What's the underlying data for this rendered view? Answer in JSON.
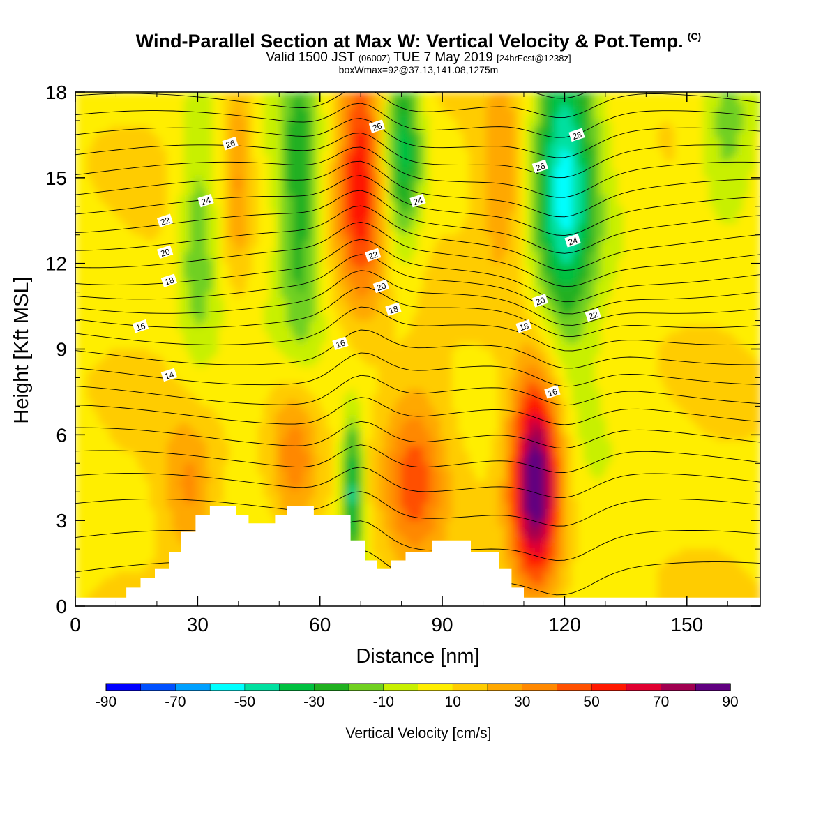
{
  "title": {
    "main": "Wind-Parallel Section at Max W: Vertical Velocity & Pot.Temp.",
    "copyright": "(C)",
    "valid_prefix": "Valid 1500 JST",
    "valid_utc": "(0600Z)",
    "valid_date": "TUE 7 May 2019",
    "forecast": "[24hrFcst@1238z]",
    "box": "boxWmax=92@37.13,141.08,1275m"
  },
  "chart_data": {
    "type": "heatmap",
    "xlabel": "Distance [nm]",
    "ylabel": "Height [Kft MSL]",
    "xlim": [
      0,
      168
    ],
    "ylim": [
      0,
      18
    ],
    "xticks": [
      0,
      30,
      60,
      90,
      120,
      150
    ],
    "yticks": [
      0,
      3,
      6,
      9,
      12,
      15,
      18
    ],
    "colorbar": {
      "label": "Vertical Velocity [cm/s]",
      "ticks": [
        -90,
        -70,
        -50,
        -30,
        -10,
        10,
        30,
        50,
        70,
        90
      ],
      "levels": [
        -90,
        -80,
        -70,
        -60,
        -50,
        -40,
        -30,
        -20,
        -10,
        0,
        10,
        20,
        30,
        40,
        50,
        60,
        70,
        80,
        90
      ],
      "colors": [
        "#0000ff",
        "#0050ff",
        "#00a0ff",
        "#00ffff",
        "#00e0a0",
        "#00c040",
        "#20b020",
        "#70d020",
        "#c8f000",
        "#ffee00",
        "#ffcc00",
        "#ffa800",
        "#ff8800",
        "#ff5000",
        "#ff1800",
        "#e00030",
        "#a00050",
        "#600080"
      ]
    },
    "vertical_velocity_features": [
      {
        "kind": "updraft",
        "x": 70,
        "y": 15.0,
        "rx": 5,
        "ry": 3.5,
        "peak": 55
      },
      {
        "kind": "updraft",
        "x": 113,
        "y": 4.5,
        "rx": 5,
        "ry": 3.0,
        "peak": 90
      },
      {
        "kind": "updraft",
        "x": 54,
        "y": 5.5,
        "rx": 5,
        "ry": 2.5,
        "peak": 35
      },
      {
        "kind": "updraft",
        "x": 83,
        "y": 4.5,
        "rx": 6,
        "ry": 2.5,
        "peak": 35
      },
      {
        "kind": "updraft",
        "x": 40,
        "y": 15.5,
        "rx": 3,
        "ry": 3.5,
        "peak": 25
      },
      {
        "kind": "updraft",
        "x": 105,
        "y": 15.0,
        "rx": 5,
        "ry": 3.0,
        "peak": 25
      },
      {
        "kind": "updraft",
        "x": 28,
        "y": 4.0,
        "rx": 5,
        "ry": 2.0,
        "peak": 25
      },
      {
        "kind": "downdraft",
        "x": 80,
        "y": 16.0,
        "rx": 4,
        "ry": 3.0,
        "peak": -45
      },
      {
        "kind": "downdraft",
        "x": 120,
        "y": 15.0,
        "rx": 6,
        "ry": 4.5,
        "peak": -55
      },
      {
        "kind": "downdraft",
        "x": 68,
        "y": 4.0,
        "rx": 2,
        "ry": 2.0,
        "peak": -50
      },
      {
        "kind": "downdraft",
        "x": 55,
        "y": 14.0,
        "rx": 4,
        "ry": 5.0,
        "peak": -30
      },
      {
        "kind": "downdraft",
        "x": 30,
        "y": 13.0,
        "rx": 4,
        "ry": 3.5,
        "peak": -25
      },
      {
        "kind": "downdraft",
        "x": 160,
        "y": 16.5,
        "rx": 6,
        "ry": 2.5,
        "peak": -25
      }
    ],
    "potential_temperature_labels": [
      {
        "text": "14",
        "x": 23,
        "y": 8.1
      },
      {
        "text": "16",
        "x": 16,
        "y": 9.8
      },
      {
        "text": "16",
        "x": 65,
        "y": 9.2
      },
      {
        "text": "16",
        "x": 117,
        "y": 7.5
      },
      {
        "text": "18",
        "x": 23,
        "y": 11.4
      },
      {
        "text": "18",
        "x": 78,
        "y": 10.4
      },
      {
        "text": "18",
        "x": 110,
        "y": 9.8
      },
      {
        "text": "20",
        "x": 22,
        "y": 12.4
      },
      {
        "text": "20",
        "x": 75,
        "y": 11.2
      },
      {
        "text": "20",
        "x": 114,
        "y": 10.7
      },
      {
        "text": "22",
        "x": 22,
        "y": 13.5
      },
      {
        "text": "22",
        "x": 73,
        "y": 12.3
      },
      {
        "text": "22",
        "x": 127,
        "y": 10.2
      },
      {
        "text": "24",
        "x": 32,
        "y": 14.2
      },
      {
        "text": "24",
        "x": 84,
        "y": 14.2
      },
      {
        "text": "24",
        "x": 122,
        "y": 12.8
      },
      {
        "text": "26",
        "x": 38,
        "y": 16.2
      },
      {
        "text": "26",
        "x": 74,
        "y": 16.8
      },
      {
        "text": "26",
        "x": 114,
        "y": 15.4
      },
      {
        "text": "28",
        "x": 123,
        "y": 16.5
      }
    ],
    "terrain": [
      [
        0,
        0.3
      ],
      [
        12.5,
        0.3
      ],
      [
        12.5,
        0.65
      ],
      [
        16,
        0.65
      ],
      [
        16,
        1.0
      ],
      [
        19.5,
        1.0
      ],
      [
        19.5,
        1.3
      ],
      [
        23,
        1.3
      ],
      [
        23,
        1.9
      ],
      [
        26,
        1.9
      ],
      [
        26,
        2.6
      ],
      [
        29.5,
        2.6
      ],
      [
        29.5,
        3.2
      ],
      [
        33,
        3.2
      ],
      [
        33,
        3.5
      ],
      [
        39.5,
        3.5
      ],
      [
        39.5,
        3.2
      ],
      [
        42.5,
        3.2
      ],
      [
        42.5,
        2.9
      ],
      [
        49,
        2.9
      ],
      [
        49,
        3.2
      ],
      [
        52,
        3.2
      ],
      [
        52,
        3.5
      ],
      [
        58.5,
        3.5
      ],
      [
        58.5,
        3.2
      ],
      [
        67.5,
        3.2
      ],
      [
        67.5,
        2.3
      ],
      [
        71,
        2.3
      ],
      [
        71,
        1.6
      ],
      [
        74,
        1.6
      ],
      [
        74,
        1.3
      ],
      [
        77.5,
        1.3
      ],
      [
        77.5,
        1.6
      ],
      [
        81,
        1.6
      ],
      [
        81,
        1.9
      ],
      [
        87.5,
        1.9
      ],
      [
        87.5,
        2.3
      ],
      [
        97,
        2.3
      ],
      [
        97,
        1.9
      ],
      [
        104,
        1.9
      ],
      [
        104,
        1.3
      ],
      [
        107,
        1.3
      ],
      [
        107,
        0.65
      ],
      [
        110,
        0.65
      ],
      [
        110,
        0.3
      ],
      [
        168,
        0.3
      ]
    ]
  }
}
